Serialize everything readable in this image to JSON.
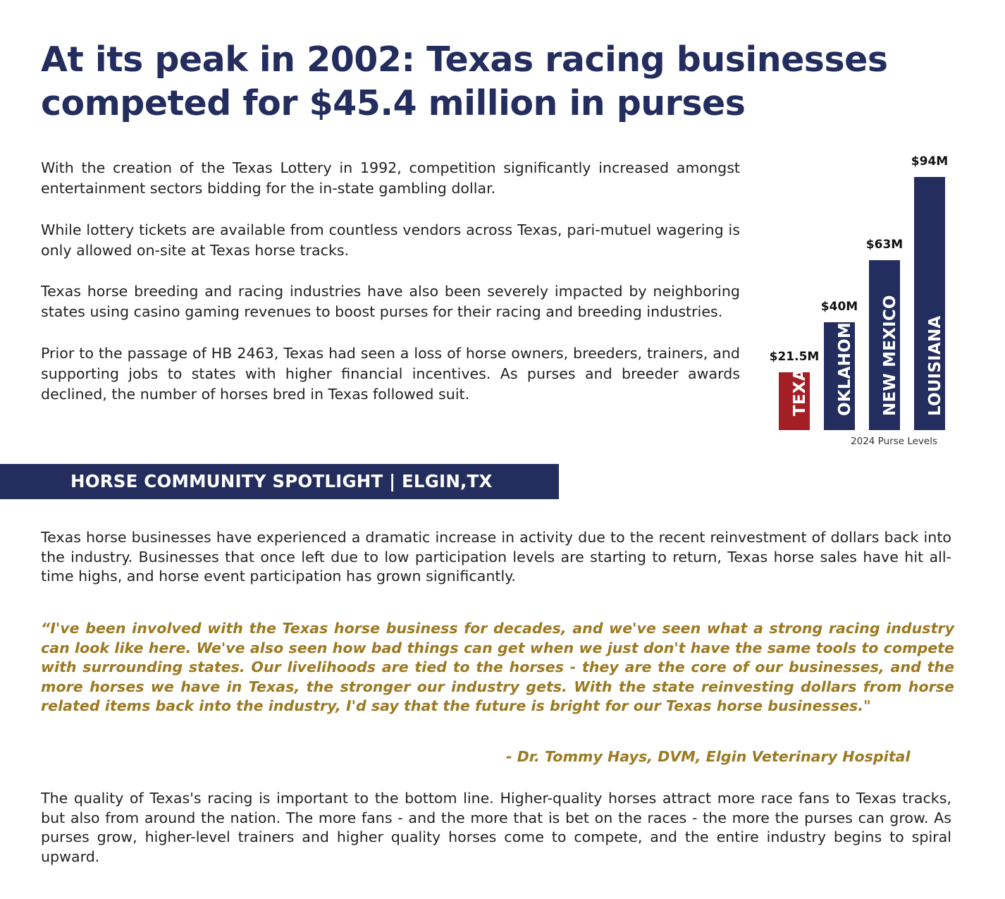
{
  "title": "At its peak in 2002: Texas racing businesses competed for $45.4 million in purses",
  "intro_paragraphs": [
    "With the creation of the Texas Lottery in 1992, competition significantly increased amongst entertainment sectors bidding for the in-state gambling dollar.",
    "While lottery tickets are available from countless vendors across Texas, pari-mutuel wagering is only allowed on-site at Texas horse tracks.",
    "Texas horse breeding and racing industries have also been severely impacted by neighboring states using casino gaming revenues to boost purses for their racing and breeding industries.",
    "Prior to the passage of HB 2463, Texas had seen a loss of horse owners, breeders, trainers, and supporting jobs to states with higher financial incentives. As purses and breeder awards declined, the number of horses bred in Texas followed suit."
  ],
  "chart_data": {
    "type": "bar",
    "title": "",
    "caption": "2024 Purse Levels",
    "categories": [
      "TEXAS",
      "OKLAHOMA",
      "NEW MEXICO",
      "LOUISIANA"
    ],
    "values": [
      21.5,
      40,
      63,
      94
    ],
    "value_labels": [
      "$21.5M",
      "$40M",
      "$63M",
      "$94M"
    ],
    "unit": "million USD",
    "colors": [
      "#a31f24",
      "#232d5e",
      "#232d5e",
      "#232d5e"
    ],
    "ylim": [
      0,
      94
    ],
    "grid": false,
    "legend": "none"
  },
  "banner": {
    "text": "HORSE COMMUNITY SPOTLIGHT | ELGIN,TX",
    "color": "#232d5e"
  },
  "spotlight_paragraph": "Texas horse businesses have experienced a dramatic increase in activity due to the recent reinvestment of dollars back into the industry. Businesses that once left due to low participation levels are starting to return, Texas horse sales have hit all-time highs, and horse event participation has grown significantly.",
  "quote": {
    "text": "“I've been involved with the Texas horse business for decades, and we've seen what a strong racing industry can look like here. We've also seen how bad things can get when we just don't have the same tools to compete with surrounding states. Our livelihoods are tied to the horses - they are the core of our businesses, and the more horses we have in Texas, the stronger our industry gets. With the state reinvesting dollars from horse related items back into the industry, I'd say that the future is bright for our Texas horse businesses.\"",
    "attribution": "- Dr. Tommy Hays, DVM, Elgin Veterinary Hospital",
    "color": "#9c7a22"
  },
  "closing_paragraph": "The quality of Texas's racing is important to the bottom line. Higher-quality horses attract more race fans to Texas tracks, but also from around the nation. The more fans - and the more that is bet on the races - the more the purses can grow. As purses grow, higher-level trainers and higher quality horses come to compete, and the entire industry begins to spiral upward."
}
